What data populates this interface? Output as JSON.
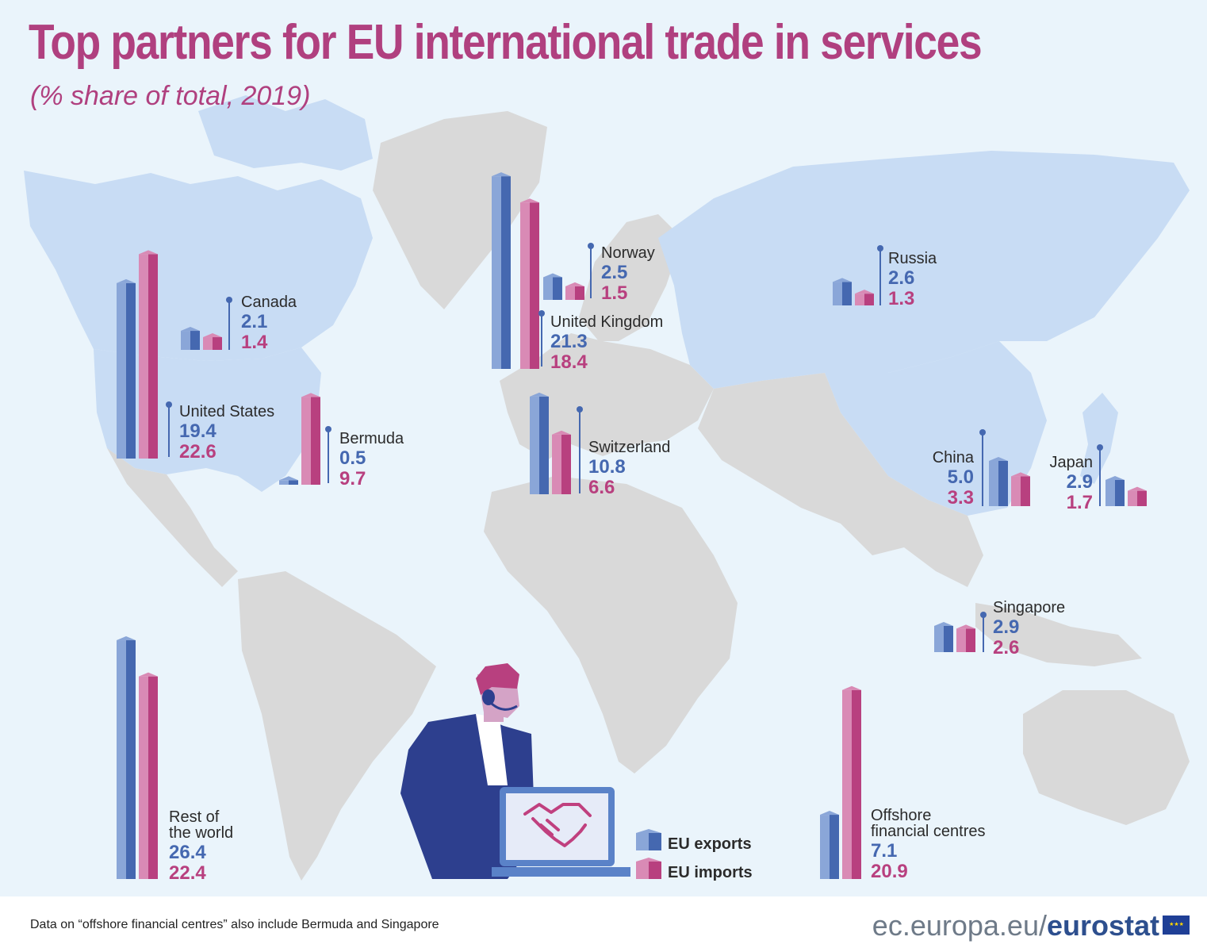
{
  "title": "Top partners for EU international trade in services",
  "subtitle": "(% share of total, 2019)",
  "footnote": "Data on “offshore financial centres” also include Bermuda and Singapore",
  "brand": {
    "prefix": "ec.europa.eu/",
    "name": "eurostat"
  },
  "legend": {
    "exports": "EU exports",
    "imports": "EU imports"
  },
  "colors": {
    "export": "#4568b0",
    "export_light": "#8aa6d8",
    "import": "#b8407f",
    "import_light": "#d98ab5",
    "ocean": "#eaf4fb",
    "land_highlight": "#c8dcf4",
    "land": "#d9d9d9",
    "title": "#b0407f"
  },
  "icons": [
    "handshake-icon",
    "headset-icon",
    "laptop-icon",
    "eu-flag-icon"
  ],
  "chart_data": {
    "type": "bar",
    "title": "Top partners for EU international trade in services",
    "subtitle": "(% share of total, 2019)",
    "unit": "% share of total",
    "series": [
      {
        "name": "EU exports"
      },
      {
        "name": "EU imports"
      }
    ],
    "partners": [
      {
        "name": "United Kingdom",
        "exports": 21.3,
        "imports": 18.4
      },
      {
        "name": "United States",
        "exports": 19.4,
        "imports": 22.6
      },
      {
        "name": "Switzerland",
        "exports": 10.8,
        "imports": 6.6
      },
      {
        "name": "China",
        "exports": 5.0,
        "imports": 3.3
      },
      {
        "name": "Japan",
        "exports": 2.9,
        "imports": 1.7
      },
      {
        "name": "Singapore",
        "exports": 2.9,
        "imports": 2.6
      },
      {
        "name": "Russia",
        "exports": 2.6,
        "imports": 1.3
      },
      {
        "name": "Norway",
        "exports": 2.5,
        "imports": 1.5
      },
      {
        "name": "Canada",
        "exports": 2.1,
        "imports": 1.4
      },
      {
        "name": "Bermuda",
        "exports": 0.5,
        "imports": 9.7
      },
      {
        "name": "Offshore financial centres",
        "exports": 7.1,
        "imports": 20.9
      },
      {
        "name": "Rest of the world",
        "exports": 26.4,
        "imports": 22.4
      }
    ]
  }
}
